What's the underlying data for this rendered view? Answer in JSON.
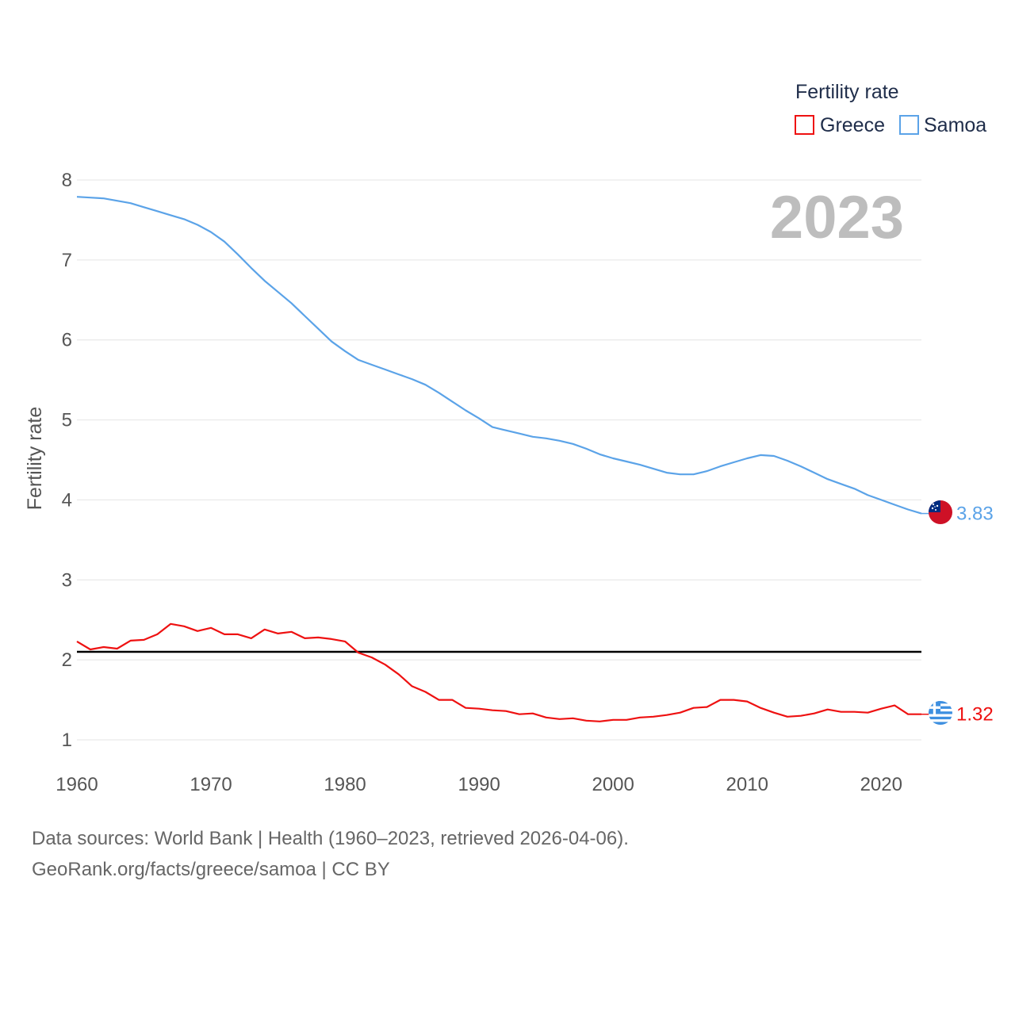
{
  "chart_data": {
    "type": "line",
    "title": "",
    "year_label": "2023",
    "ylabel": "Fertility rate",
    "xlabel": "",
    "xlim": [
      1960,
      2023
    ],
    "ylim": [
      0.8,
      8.4
    ],
    "yticks": [
      1,
      2,
      3,
      4,
      5,
      6,
      7,
      8
    ],
    "xticks": [
      1960,
      1970,
      1980,
      1990,
      2000,
      2010,
      2020
    ],
    "reference_line": {
      "value": 2.1,
      "color": "#000000"
    },
    "legend": {
      "title": "Fertility rate",
      "position": "top-right"
    },
    "x": [
      1960,
      1961,
      1962,
      1963,
      1964,
      1965,
      1966,
      1967,
      1968,
      1969,
      1970,
      1971,
      1972,
      1973,
      1974,
      1975,
      1976,
      1977,
      1978,
      1979,
      1980,
      1981,
      1982,
      1983,
      1984,
      1985,
      1986,
      1987,
      1988,
      1989,
      1990,
      1991,
      1992,
      1993,
      1994,
      1995,
      1996,
      1997,
      1998,
      1999,
      2000,
      2001,
      2002,
      2003,
      2004,
      2005,
      2006,
      2007,
      2008,
      2009,
      2010,
      2011,
      2012,
      2013,
      2014,
      2015,
      2016,
      2017,
      2018,
      2019,
      2020,
      2021,
      2022,
      2023
    ],
    "series": [
      {
        "name": "Greece",
        "color": "#ee1111",
        "end_label": "1.32",
        "flag_icon": "greece-flag-icon",
        "values": [
          2.23,
          2.13,
          2.16,
          2.14,
          2.24,
          2.25,
          2.32,
          2.45,
          2.42,
          2.36,
          2.4,
          2.32,
          2.32,
          2.27,
          2.38,
          2.33,
          2.35,
          2.27,
          2.28,
          2.26,
          2.23,
          2.09,
          2.03,
          1.94,
          1.82,
          1.67,
          1.6,
          1.5,
          1.5,
          1.4,
          1.39,
          1.37,
          1.36,
          1.32,
          1.33,
          1.28,
          1.26,
          1.27,
          1.24,
          1.23,
          1.25,
          1.25,
          1.28,
          1.29,
          1.31,
          1.34,
          1.4,
          1.41,
          1.5,
          1.5,
          1.48,
          1.4,
          1.34,
          1.29,
          1.3,
          1.33,
          1.38,
          1.35,
          1.35,
          1.34,
          1.39,
          1.43,
          1.32,
          1.32
        ]
      },
      {
        "name": "Samoa",
        "color": "#5ba3e8",
        "end_label": "3.83",
        "flag_icon": "samoa-flag-icon",
        "values": [
          7.79,
          7.78,
          7.77,
          7.74,
          7.71,
          7.66,
          7.61,
          7.56,
          7.51,
          7.44,
          7.35,
          7.23,
          7.07,
          6.9,
          6.74,
          6.6,
          6.46,
          6.3,
          6.14,
          5.98,
          5.86,
          5.75,
          5.69,
          5.63,
          5.57,
          5.51,
          5.44,
          5.34,
          5.23,
          5.12,
          5.02,
          4.91,
          4.87,
          4.83,
          4.79,
          4.77,
          4.74,
          4.7,
          4.64,
          4.57,
          4.52,
          4.48,
          4.44,
          4.39,
          4.34,
          4.32,
          4.32,
          4.36,
          4.42,
          4.47,
          4.52,
          4.56,
          4.55,
          4.49,
          4.42,
          4.34,
          4.26,
          4.2,
          4.14,
          4.06,
          4.0,
          3.94,
          3.88,
          3.83
        ]
      }
    ]
  },
  "footer": {
    "line1": "Data sources: World Bank | Health (1960–2023, retrieved 2026-04-06).",
    "line2": "GeoRank.org/facts/greece/samoa | CC BY"
  }
}
